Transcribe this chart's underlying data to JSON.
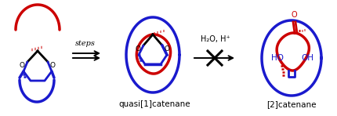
{
  "bg_color": "#ffffff",
  "red_color": "#cc0000",
  "blue_color": "#1a1acd",
  "black_color": "#000000",
  "label1": "steps",
  "label2": "H₂O, H⁺",
  "label3": "quasi[1]catenane",
  "label4": "[2]catenane",
  "figsize": [
    4.31,
    1.48
  ],
  "dpi": 100
}
